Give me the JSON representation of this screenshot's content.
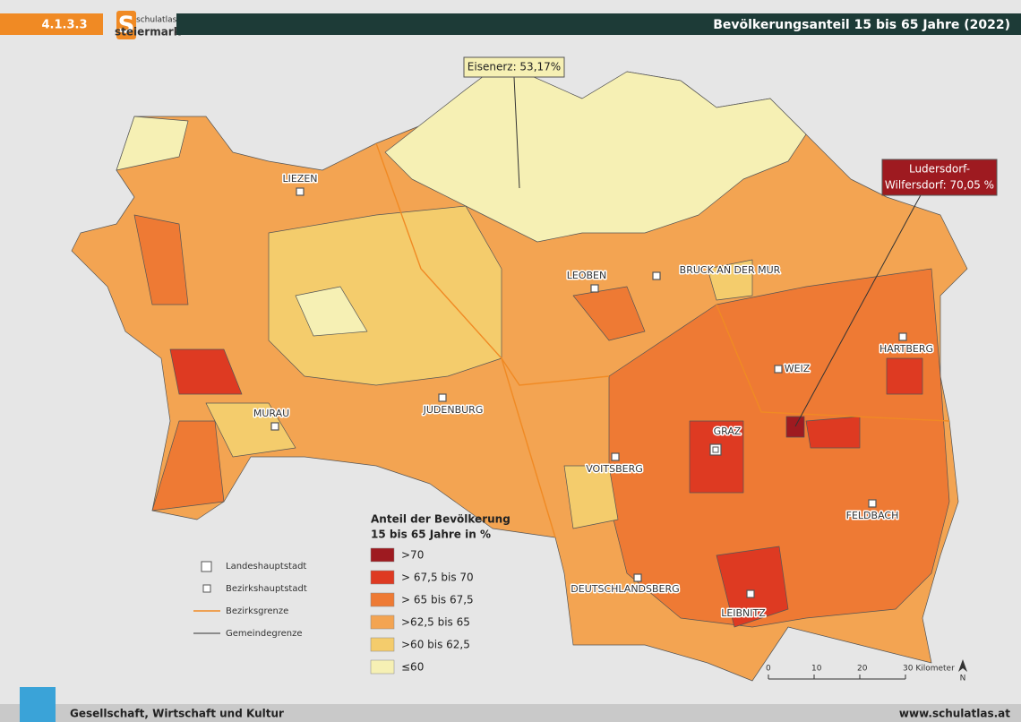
{
  "header": {
    "section": "4.1.3.3",
    "logo_letter": "S",
    "logo_top": "schulatlas",
    "logo_bottom": "steiermark",
    "title": "Bevölkerungsanteil 15 bis 65 Jahre (2022)"
  },
  "callouts": [
    {
      "lines": [
        "Eisenerz: 53,17%"
      ]
    },
    {
      "lines": [
        "Ludersdorf-",
        "Wilfersdorf: 70,05 %"
      ]
    }
  ],
  "cities": [
    "LIEZEN",
    "LEOBEN",
    "BRUCK AN DER MUR",
    "HARTBERG",
    "WEIZ",
    "GRAZ",
    "JUDENBURG",
    "MURAU",
    "VOITSBERG",
    "FELDBACH",
    "DEUTSCHLANDSBERG",
    "LEIBNITZ"
  ],
  "legend": {
    "title_lines": [
      "Anteil der Bevölkerung",
      "15 bis 65 Jahre in %"
    ],
    "classes": [
      {
        "label": ">70",
        "color": "#9e1a20"
      },
      {
        "label": "> 67,5 bis 70",
        "color": "#de3a22"
      },
      {
        "label": "> 65 bis 67,5",
        "color": "#ee7a34"
      },
      {
        "label": ">62,5 bis 65",
        "color": "#f3a452"
      },
      {
        "label": ">60 bis 62,5",
        "color": "#f4cc6c"
      },
      {
        "label": "≤60",
        "color": "#f6f0b4"
      }
    ]
  },
  "symbols": [
    "Landeshauptstadt",
    "Bezirkshauptstadt",
    "Bezirksgrenze",
    "Gemeindegrenze"
  ],
  "scale": {
    "ticks": [
      "0",
      "10",
      "20",
      "30 Kilometer"
    ],
    "north": "N"
  },
  "footer": {
    "left": "Gesellschaft, Wirtschaft und Kultur",
    "right": "www.schulatlas.at"
  }
}
